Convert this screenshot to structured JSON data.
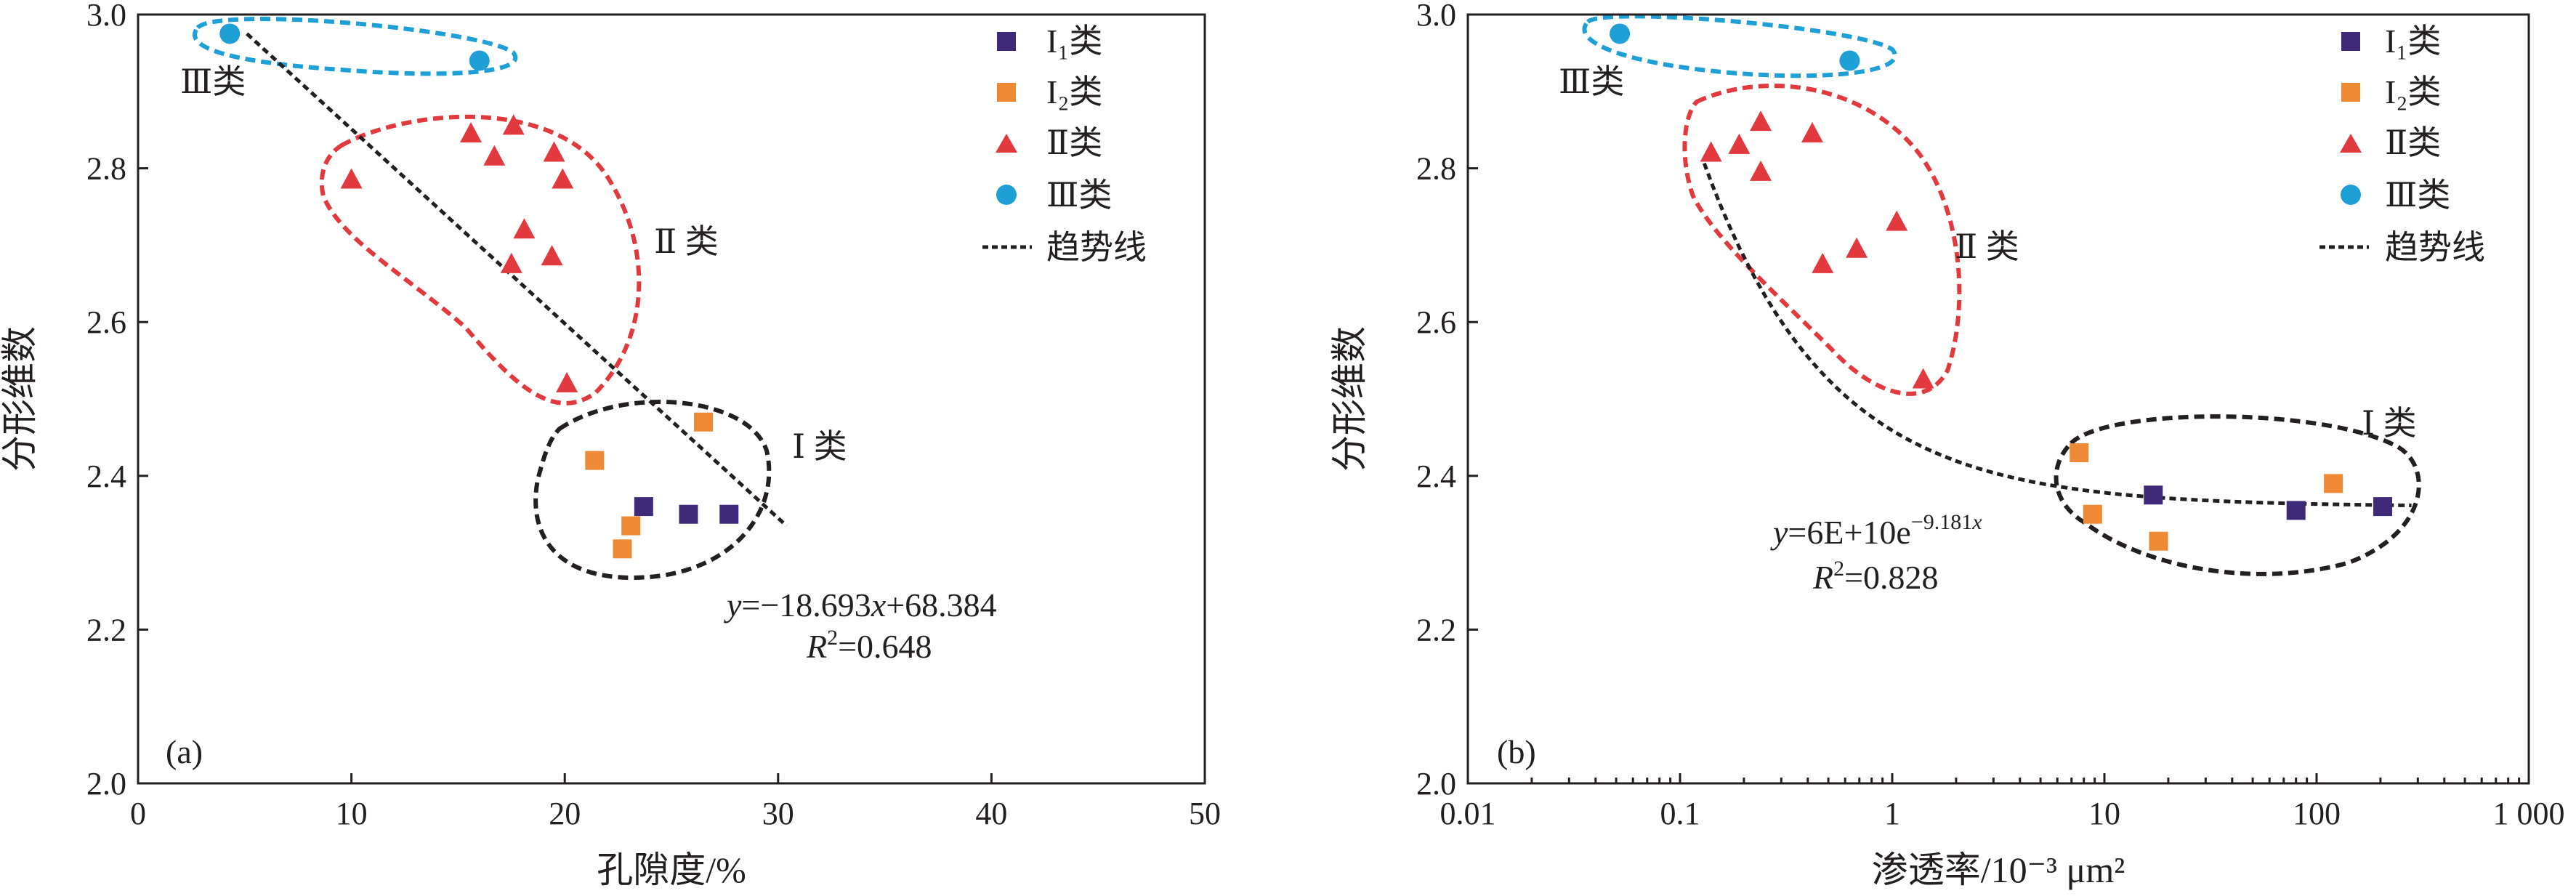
{
  "chart_data": [
    {
      "type": "scatter",
      "panel_label": "(a)",
      "xlabel": "孔隙度/%",
      "ylabel": "分形维数",
      "x_scale": "linear",
      "xlim": [
        0,
        50
      ],
      "ylim": [
        2.0,
        3.0
      ],
      "x_ticks": [
        0,
        10,
        20,
        30,
        40,
        50
      ],
      "x_tick_labels": [
        "0",
        "10",
        "20",
        "30",
        "40",
        "50"
      ],
      "y_ticks": [
        2.0,
        2.2,
        2.4,
        2.6,
        2.8,
        3.0
      ],
      "y_tick_labels": [
        "2.0",
        "2.2",
        "2.4",
        "2.6",
        "2.8",
        "3.0"
      ],
      "grid": false,
      "legend_position": "top-right",
      "series": [
        {
          "name": "I₁类",
          "marker": "square",
          "color": "#3f2a79",
          "points": [
            [
              23.7,
              2.36
            ],
            [
              25.8,
              2.35
            ],
            [
              27.7,
              2.35
            ]
          ]
        },
        {
          "name": "I₂类",
          "marker": "square",
          "color": "#ee8a35",
          "points": [
            [
              21.4,
              2.42
            ],
            [
              26.5,
              2.47
            ],
            [
              23.1,
              2.335
            ],
            [
              22.7,
              2.305
            ]
          ]
        },
        {
          "name": "Ⅱ类",
          "marker": "triangle",
          "color": "#e2393f",
          "points": [
            [
              10.0,
              2.785
            ],
            [
              15.6,
              2.845
            ],
            [
              17.6,
              2.855
            ],
            [
              16.7,
              2.815
            ],
            [
              19.5,
              2.82
            ],
            [
              19.9,
              2.785
            ],
            [
              18.1,
              2.72
            ],
            [
              17.5,
              2.675
            ],
            [
              19.4,
              2.685
            ],
            [
              20.1,
              2.52
            ]
          ]
        },
        {
          "name": "Ⅲ类",
          "marker": "circle",
          "color": "#1e9fd6",
          "points": [
            [
              4.3,
              2.975
            ],
            [
              16.0,
              2.94
            ]
          ]
        },
        {
          "name": "趋势线",
          "type": "trend",
          "color": "#231f20",
          "x_range": [
            5.1,
            30.4
          ],
          "equation": "y = -18.693x + 68.384"
        }
      ],
      "annotations": {
        "equation_text": "=−18.693",
        "r2_text": "=0.648",
        "class_labels": [
          "Ⅰ 类",
          "Ⅱ 类",
          "Ⅲ类"
        ]
      }
    },
    {
      "type": "scatter",
      "panel_label": "(b)",
      "xlabel": "渗透率/10⁻³ μm²",
      "ylabel": "分形维数",
      "x_scale": "log",
      "xlim": [
        0.01,
        1000
      ],
      "ylim": [
        2.0,
        3.0
      ],
      "x_ticks": [
        0.01,
        0.1,
        1,
        10,
        100,
        1000
      ],
      "x_tick_labels": [
        "0.01",
        "0.1",
        "1",
        "10",
        "100",
        "1 000"
      ],
      "y_ticks": [
        2.0,
        2.2,
        2.4,
        2.6,
        2.8,
        3.0
      ],
      "y_tick_labels": [
        "2.0",
        "2.2",
        "2.4",
        "2.6",
        "2.8",
        "3.0"
      ],
      "grid": false,
      "legend_position": "top-right",
      "series": [
        {
          "name": "I₁类",
          "marker": "square",
          "color": "#3f2a79",
          "points": [
            [
              17,
              2.375
            ],
            [
              80,
              2.355
            ],
            [
              205,
              2.36
            ]
          ]
        },
        {
          "name": "I₂类",
          "marker": "square",
          "color": "#ee8a35",
          "points": [
            [
              7.6,
              2.43
            ],
            [
              8.8,
              2.35
            ],
            [
              18,
              2.315
            ],
            [
              120,
              2.39
            ]
          ]
        },
        {
          "name": "Ⅱ类",
          "marker": "triangle",
          "color": "#e2393f",
          "points": [
            [
              0.14,
              2.82
            ],
            [
              0.19,
              2.83
            ],
            [
              0.24,
              2.86
            ],
            [
              0.24,
              2.795
            ],
            [
              0.42,
              2.845
            ],
            [
              0.47,
              2.675
            ],
            [
              0.68,
              2.695
            ],
            [
              1.05,
              2.73
            ],
            [
              1.4,
              2.525
            ]
          ]
        },
        {
          "name": "Ⅲ类",
          "marker": "circle",
          "color": "#1e9fd6",
          "points": [
            [
              0.052,
              2.975
            ],
            [
              0.63,
              2.94
            ]
          ]
        },
        {
          "name": "趋势线",
          "type": "trend",
          "color": "#231f20",
          "x_range": [
            0.13,
            280
          ],
          "equation": "y = 6E+10 e^(-9.181x)"
        }
      ],
      "annotations": {
        "equation_text": "=6E+10e",
        "exponent_text": "−9.181",
        "r2_text": "=0.828",
        "class_labels": [
          "Ⅰ 类",
          "Ⅱ 类",
          "Ⅲ类"
        ]
      }
    }
  ]
}
